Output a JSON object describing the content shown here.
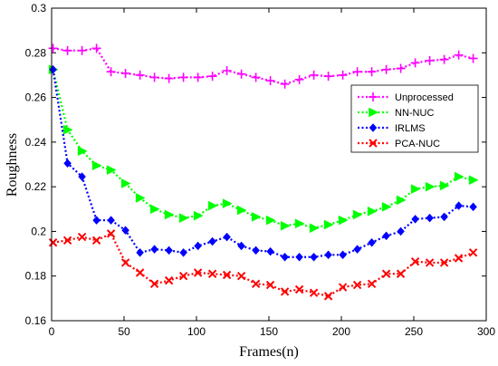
{
  "chart_data": {
    "type": "line",
    "xlabel": "Frames(n)",
    "ylabel": "Roughness",
    "xlim": [
      0,
      300
    ],
    "ylim": [
      0.16,
      0.3
    ],
    "xticks": [
      0,
      50,
      100,
      150,
      200,
      250,
      300
    ],
    "yticks": [
      0.16,
      0.18,
      0.2,
      0.22,
      0.24,
      0.26,
      0.28,
      0.3
    ],
    "grid": false,
    "legend_position": "right",
    "x": [
      1,
      11,
      21,
      31,
      41,
      51,
      61,
      71,
      81,
      91,
      101,
      111,
      121,
      131,
      141,
      151,
      161,
      171,
      181,
      191,
      201,
      211,
      221,
      231,
      241,
      251,
      261,
      271,
      281,
      291
    ],
    "series": [
      {
        "name": "Unprocessed",
        "color": "#ff00ff",
        "marker": "plus",
        "values": [
          0.282,
          0.281,
          0.281,
          0.282,
          0.2715,
          0.2708,
          0.27,
          0.269,
          0.2685,
          0.269,
          0.269,
          0.2695,
          0.272,
          0.2705,
          0.269,
          0.2675,
          0.266,
          0.268,
          0.27,
          0.2695,
          0.27,
          0.2715,
          0.2715,
          0.2725,
          0.273,
          0.2755,
          0.2765,
          0.277,
          0.279,
          0.2775
        ]
      },
      {
        "name": "NN-NUC",
        "color": "#00ff00",
        "marker": "triangle-right",
        "values": [
          0.2725,
          0.2455,
          0.236,
          0.2295,
          0.2275,
          0.2215,
          0.215,
          0.21,
          0.2075,
          0.206,
          0.207,
          0.2115,
          0.2125,
          0.2095,
          0.2065,
          0.205,
          0.2025,
          0.2035,
          0.2015,
          0.203,
          0.205,
          0.2075,
          0.209,
          0.211,
          0.214,
          0.219,
          0.22,
          0.2205,
          0.2245,
          0.223
        ]
      },
      {
        "name": "IRLMS",
        "color": "#0000ff",
        "marker": "diamond",
        "values": [
          0.2725,
          0.2305,
          0.2245,
          0.205,
          0.205,
          0.2005,
          0.1905,
          0.192,
          0.1915,
          0.1905,
          0.1935,
          0.1955,
          0.1975,
          0.1935,
          0.1915,
          0.191,
          0.1885,
          0.1885,
          0.1885,
          0.1895,
          0.1895,
          0.192,
          0.195,
          0.198,
          0.2,
          0.2055,
          0.206,
          0.2065,
          0.2115,
          0.211
        ]
      },
      {
        "name": "PCA-NUC",
        "color": "#ff0000",
        "marker": "cross",
        "values": [
          0.195,
          0.196,
          0.1975,
          0.196,
          0.199,
          0.186,
          0.1815,
          0.1765,
          0.178,
          0.18,
          0.1815,
          0.181,
          0.1805,
          0.18,
          0.1765,
          0.176,
          0.173,
          0.174,
          0.1725,
          0.171,
          0.175,
          0.176,
          0.1765,
          0.181,
          0.181,
          0.1865,
          0.186,
          0.186,
          0.188,
          0.1905
        ]
      }
    ]
  }
}
